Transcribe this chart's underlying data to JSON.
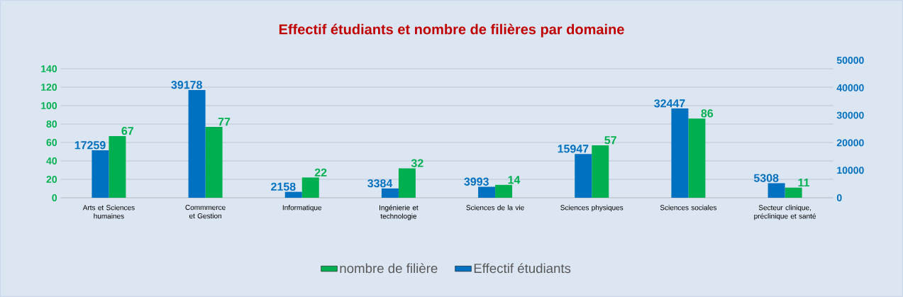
{
  "chart_data": {
    "type": "bar",
    "title": "Effectif étudiants et nombre de filières par domaine",
    "categories": [
      "Arts et Sciences humaines",
      "Commmerce et Gestion",
      "Informatique",
      "Ingénierie et technologie",
      "Sciences de la vie",
      "Sciences physiques",
      "Sciences sociales",
      "Secteur clinique, préclinique et santé"
    ],
    "series": [
      {
        "name": "Effectif étudiants",
        "color": "#0070c0",
        "axis": "y2",
        "values": [
          17259,
          39178,
          2158,
          3384,
          3993,
          15947,
          32447,
          5308
        ]
      },
      {
        "name": "nombre de filière",
        "color": "#00b050",
        "values": [
          67,
          77,
          22,
          32,
          14,
          57,
          86,
          11
        ]
      }
    ],
    "ylim": [
      0,
      140
    ],
    "yticks": [
      0,
      20,
      40,
      60,
      80,
      100,
      120,
      140
    ],
    "y2lim": [
      0,
      50000
    ],
    "y2ticks": [
      0,
      10000,
      20000,
      30000,
      40000,
      50000
    ],
    "data_labels": true,
    "grid": "y",
    "legend": "bottom"
  }
}
